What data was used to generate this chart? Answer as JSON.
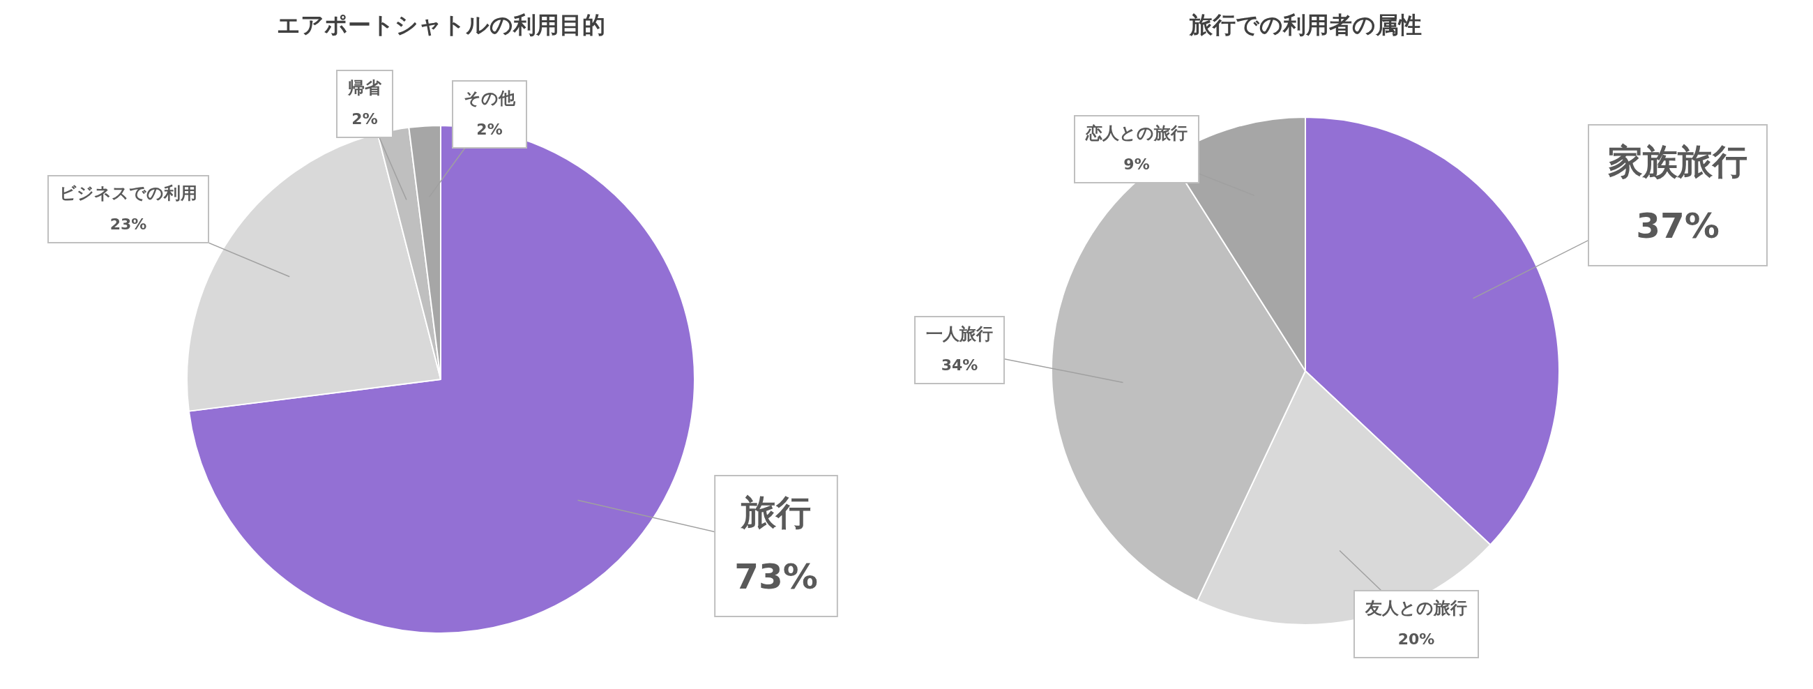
{
  "chart_data": [
    {
      "type": "pie",
      "title": "エアポートシャトルの利用目的",
      "categories": [
        "旅行",
        "ビジネスでの利用",
        "帰省",
        "その他"
      ],
      "values": [
        73,
        23,
        2,
        2
      ],
      "colors": [
        "#9370d4",
        "#d9d9d9",
        "#bfbfbf",
        "#a6a6a6"
      ],
      "value_labels": [
        "73%",
        "23%",
        "2%",
        "2%"
      ]
    },
    {
      "type": "pie",
      "title": "旅行での利用者の属性",
      "categories": [
        "家族旅行",
        "友人との旅行",
        "一人旅行",
        "恋人との旅行"
      ],
      "values": [
        37,
        20,
        34,
        9
      ],
      "colors": [
        "#9370d4",
        "#d9d9d9",
        "#bfbfbf",
        "#a6a6a6"
      ],
      "value_labels": [
        "37%",
        "20%",
        "34%",
        "9%"
      ]
    }
  ]
}
